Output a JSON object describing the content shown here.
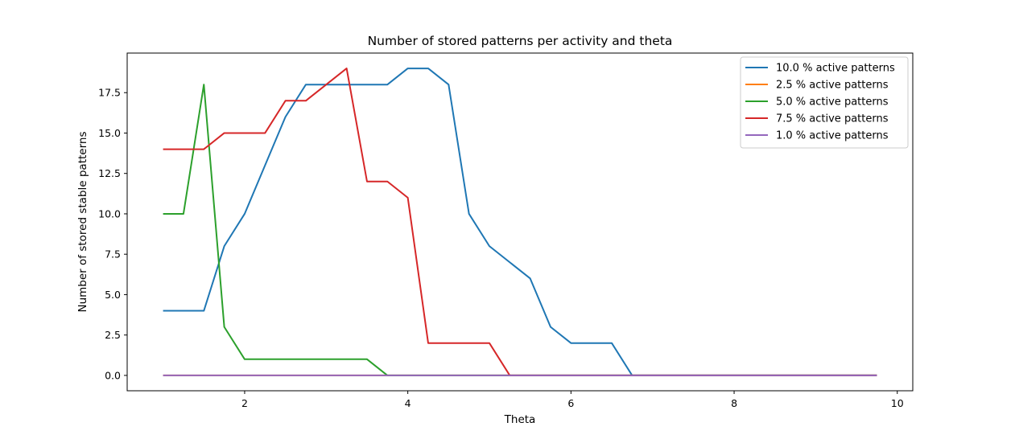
{
  "chart_data": {
    "type": "line",
    "title": "Number of stored patterns per activity and theta",
    "xlabel": "Theta",
    "ylabel": "Number of stored stable patterns",
    "xlim": [
      0.56,
      10.19
    ],
    "ylim": [
      -0.95,
      19.95
    ],
    "xticks": [
      2,
      4,
      6,
      8,
      10
    ],
    "yticks": [
      0.0,
      2.5,
      5.0,
      7.5,
      10.0,
      12.5,
      15.0,
      17.5
    ],
    "ytick_labels": [
      "0.0",
      "2.5",
      "5.0",
      "7.5",
      "10.0",
      "12.5",
      "15.0",
      "17.5"
    ],
    "grid": false,
    "legend_position": "top-right",
    "x": [
      1.0,
      1.25,
      1.5,
      1.75,
      2.0,
      2.25,
      2.5,
      2.75,
      3.0,
      3.25,
      3.5,
      3.75,
      4.0,
      4.25,
      4.5,
      4.75,
      5.0,
      5.25,
      5.5,
      5.75,
      6.0,
      6.25,
      6.5,
      6.75,
      7.0,
      7.25,
      7.5,
      7.75,
      8.0,
      8.25,
      8.5,
      8.75,
      9.0,
      9.25,
      9.5,
      9.75
    ],
    "series": [
      {
        "name": "10.0 % active patterns",
        "color": "#1f77b4",
        "values": [
          4,
          4,
          4,
          8,
          10,
          13,
          16,
          18,
          18,
          18,
          18,
          18,
          19,
          19,
          18,
          10,
          8,
          7,
          6,
          3,
          2,
          2,
          2,
          0,
          0,
          0,
          0,
          0,
          0,
          0,
          0,
          0,
          0,
          0,
          0,
          0
        ]
      },
      {
        "name": "2.5 % active patterns",
        "color": "#ff7f0e",
        "values": [
          0,
          0,
          0,
          0,
          0,
          0,
          0,
          0,
          0,
          0,
          0,
          0,
          0,
          0,
          0,
          0,
          0,
          0,
          0,
          0,
          0,
          0,
          0,
          0,
          0,
          0,
          0,
          0,
          0,
          0,
          0,
          0,
          0,
          0,
          0,
          0
        ]
      },
      {
        "name": "5.0 % active patterns",
        "color": "#2ca02c",
        "values": [
          10,
          10,
          18,
          3,
          1,
          1,
          1,
          1,
          1,
          1,
          1,
          0,
          0,
          0,
          0,
          0,
          0,
          0,
          0,
          0,
          0,
          0,
          0,
          0,
          0,
          0,
          0,
          0,
          0,
          0,
          0,
          0,
          0,
          0,
          0,
          0
        ]
      },
      {
        "name": "7.5 % active patterns",
        "color": "#d62728",
        "values": [
          14,
          14,
          14,
          15,
          15,
          15,
          17,
          17,
          18,
          19,
          12,
          12,
          11,
          2,
          2,
          2,
          2,
          0,
          0,
          0,
          0,
          0,
          0,
          0,
          0,
          0,
          0,
          0,
          0,
          0,
          0,
          0,
          0,
          0,
          0,
          0
        ]
      },
      {
        "name": "1.0 % active patterns",
        "color": "#9467bd",
        "values": [
          0,
          0,
          0,
          0,
          0,
          0,
          0,
          0,
          0,
          0,
          0,
          0,
          0,
          0,
          0,
          0,
          0,
          0,
          0,
          0,
          0,
          0,
          0,
          0,
          0,
          0,
          0,
          0,
          0,
          0,
          0,
          0,
          0,
          0,
          0,
          0
        ]
      }
    ]
  }
}
